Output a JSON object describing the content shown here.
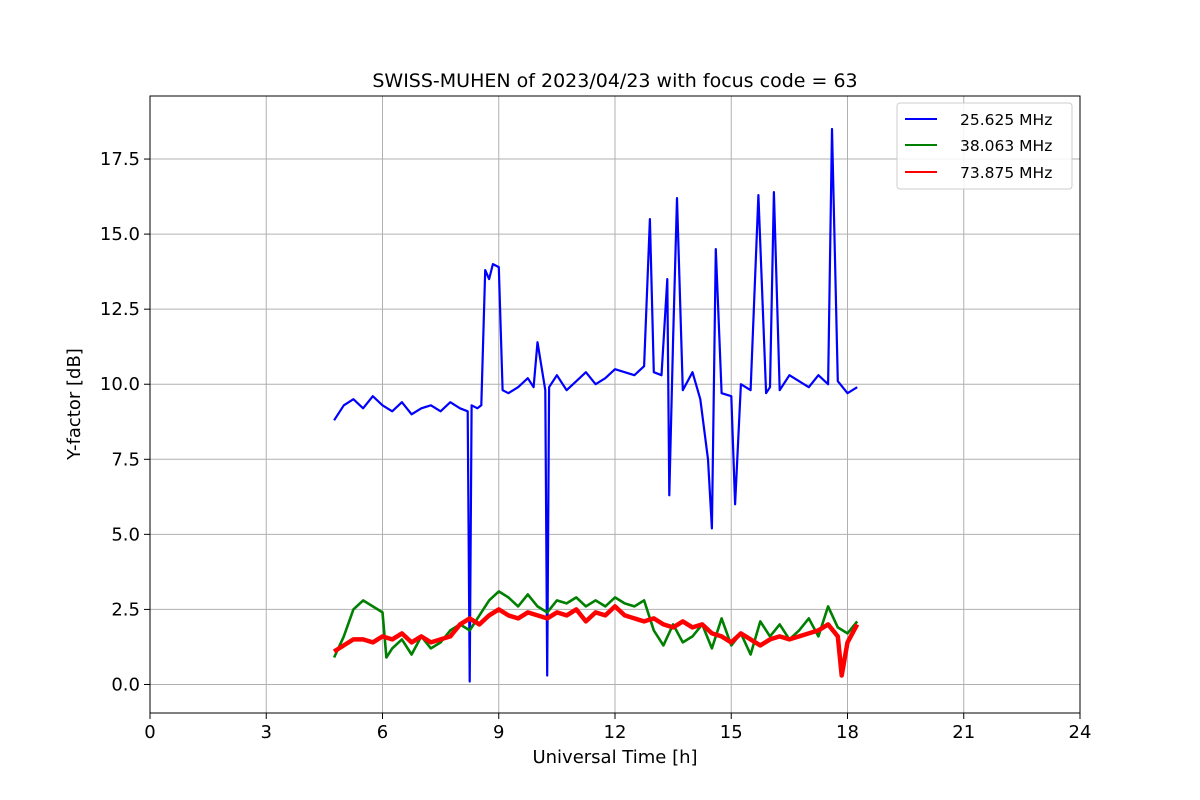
{
  "chart_data": {
    "type": "line",
    "title": "SWISS-MUHEN of 2023/04/23 with focus code = 63",
    "xlabel": "Universal Time [h]",
    "ylabel": "Y-factor [dB]",
    "xlim": [
      0,
      24
    ],
    "ylim": [
      -0.95,
      19.6
    ],
    "x_ticks": [
      0,
      3,
      6,
      9,
      12,
      15,
      18,
      21,
      24
    ],
    "x_tick_labels": [
      "0",
      "3",
      "6",
      "9",
      "12",
      "15",
      "18",
      "21",
      "24"
    ],
    "y_ticks": [
      0,
      2.5,
      5,
      7.5,
      10,
      12.5,
      15,
      17.5
    ],
    "y_tick_labels": [
      "0.0",
      "2.5",
      "5.0",
      "7.5",
      "10.0",
      "12.5",
      "15.0",
      "17.5"
    ],
    "grid": true,
    "legend_position": "top-right",
    "series": [
      {
        "name": "25.625 MHz",
        "color": "#0000ff",
        "x": [
          4.75,
          5.0,
          5.25,
          5.5,
          5.75,
          6.0,
          6.25,
          6.5,
          6.75,
          7.0,
          7.25,
          7.5,
          7.75,
          8.0,
          8.2,
          8.25,
          8.3,
          8.45,
          8.55,
          8.65,
          8.75,
          8.85,
          9.0,
          9.1,
          9.25,
          9.5,
          9.75,
          9.9,
          10.0,
          10.2,
          10.25,
          10.3,
          10.5,
          10.75,
          11.0,
          11.25,
          11.5,
          11.75,
          12.0,
          12.25,
          12.5,
          12.75,
          12.9,
          13.0,
          13.2,
          13.35,
          13.4,
          13.5,
          13.6,
          13.75,
          14.0,
          14.2,
          14.4,
          14.5,
          14.6,
          14.75,
          15.0,
          15.1,
          15.25,
          15.5,
          15.7,
          15.9,
          16.0,
          16.1,
          16.25,
          16.5,
          16.75,
          17.0,
          17.25,
          17.5,
          17.6,
          17.75,
          18.0,
          18.25
        ],
        "values": [
          8.8,
          9.3,
          9.5,
          9.2,
          9.6,
          9.3,
          9.1,
          9.4,
          9.0,
          9.2,
          9.3,
          9.1,
          9.4,
          9.2,
          9.1,
          0.1,
          9.3,
          9.2,
          9.3,
          13.8,
          13.5,
          14.0,
          13.9,
          9.8,
          9.7,
          9.9,
          10.2,
          9.9,
          11.4,
          9.8,
          0.3,
          9.9,
          10.3,
          9.8,
          10.1,
          10.4,
          10.0,
          10.2,
          10.5,
          10.4,
          10.3,
          10.6,
          15.5,
          10.4,
          10.3,
          13.5,
          6.3,
          11.5,
          16.2,
          9.8,
          10.4,
          9.5,
          7.5,
          5.2,
          14.5,
          9.7,
          9.6,
          6.0,
          10.0,
          9.8,
          16.3,
          9.7,
          9.9,
          16.4,
          9.8,
          10.3,
          10.1,
          9.9,
          10.3,
          10.0,
          18.5,
          10.1,
          9.7,
          9.9
        ]
      },
      {
        "name": "38.063 MHz",
        "color": "#008000",
        "x": [
          4.75,
          5.0,
          5.25,
          5.5,
          5.75,
          6.0,
          6.1,
          6.25,
          6.5,
          6.75,
          7.0,
          7.25,
          7.5,
          7.75,
          8.0,
          8.25,
          8.5,
          8.75,
          9.0,
          9.25,
          9.5,
          9.75,
          10.0,
          10.25,
          10.5,
          10.75,
          11.0,
          11.25,
          11.5,
          11.75,
          12.0,
          12.25,
          12.5,
          12.75,
          13.0,
          13.25,
          13.5,
          13.75,
          14.0,
          14.25,
          14.5,
          14.75,
          15.0,
          15.25,
          15.5,
          15.75,
          16.0,
          16.25,
          16.5,
          16.75,
          17.0,
          17.25,
          17.5,
          17.75,
          18.0,
          18.25
        ],
        "values": [
          0.9,
          1.6,
          2.5,
          2.8,
          2.6,
          2.4,
          0.9,
          1.2,
          1.5,
          1.0,
          1.6,
          1.2,
          1.4,
          1.8,
          2.0,
          1.8,
          2.3,
          2.8,
          3.1,
          2.9,
          2.6,
          3.0,
          2.6,
          2.4,
          2.8,
          2.7,
          2.9,
          2.6,
          2.8,
          2.6,
          2.9,
          2.7,
          2.6,
          2.8,
          1.8,
          1.3,
          2.0,
          1.4,
          1.6,
          2.0,
          1.2,
          2.2,
          1.3,
          1.7,
          1.0,
          2.1,
          1.6,
          2.0,
          1.5,
          1.8,
          2.2,
          1.6,
          2.6,
          1.9,
          1.7,
          2.1
        ]
      },
      {
        "name": "73.875 MHz",
        "color": "#ff0000",
        "x": [
          4.75,
          5.0,
          5.25,
          5.5,
          5.75,
          6.0,
          6.25,
          6.5,
          6.75,
          7.0,
          7.25,
          7.5,
          7.75,
          8.0,
          8.25,
          8.5,
          8.75,
          9.0,
          9.25,
          9.5,
          9.75,
          10.0,
          10.25,
          10.5,
          10.75,
          11.0,
          11.25,
          11.5,
          11.75,
          12.0,
          12.25,
          12.5,
          12.75,
          13.0,
          13.25,
          13.5,
          13.75,
          14.0,
          14.25,
          14.5,
          14.75,
          15.0,
          15.25,
          15.5,
          15.75,
          16.0,
          16.25,
          16.5,
          16.75,
          17.0,
          17.25,
          17.5,
          17.75,
          17.85,
          18.0,
          18.25
        ],
        "values": [
          1.1,
          1.3,
          1.5,
          1.5,
          1.4,
          1.6,
          1.5,
          1.7,
          1.4,
          1.6,
          1.4,
          1.5,
          1.6,
          2.0,
          2.2,
          2.0,
          2.3,
          2.5,
          2.3,
          2.2,
          2.4,
          2.3,
          2.2,
          2.4,
          2.3,
          2.5,
          2.1,
          2.4,
          2.3,
          2.6,
          2.3,
          2.2,
          2.1,
          2.2,
          2.0,
          1.9,
          2.1,
          1.9,
          2.0,
          1.7,
          1.6,
          1.4,
          1.7,
          1.5,
          1.3,
          1.5,
          1.6,
          1.5,
          1.6,
          1.7,
          1.8,
          2.0,
          1.6,
          0.3,
          1.4,
          2.0
        ]
      }
    ]
  }
}
